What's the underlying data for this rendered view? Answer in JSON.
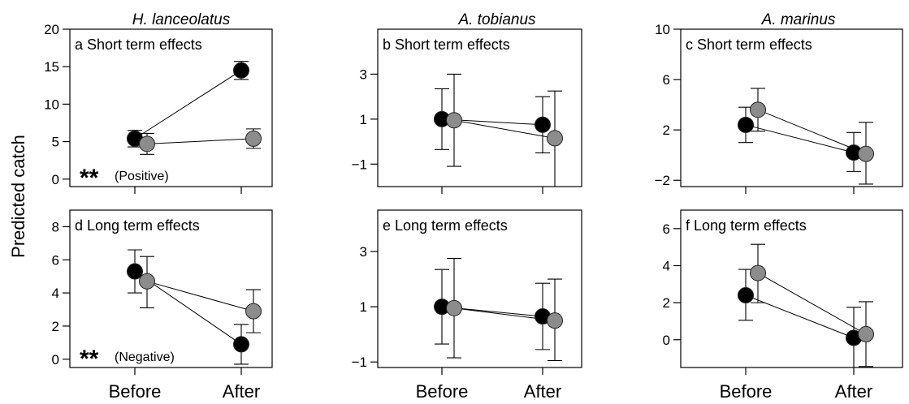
{
  "figure": {
    "ylabel": "Predicted catch",
    "species": [
      "H. lanceolatus",
      "A. tobianus",
      "A. marinus"
    ]
  },
  "colors": {
    "series_black": "#000000",
    "series_grey": "#8c8c8c"
  },
  "chart_data": [
    {
      "type": "line",
      "panel": "a",
      "title": "a Short term effects",
      "species": "H. lanceolatus",
      "categories": [
        "Before",
        "After"
      ],
      "ylim": [
        -1,
        20
      ],
      "yticks": [
        0,
        5,
        10,
        15,
        20
      ],
      "annotation": "(Positive)",
      "stars": "**",
      "series": [
        {
          "values": [
            5.4,
            14.5
          ],
          "err_low": [
            4.3,
            13.3
          ],
          "err_high": [
            6.5,
            15.7
          ]
        },
        {
          "values": [
            4.7,
            5.4
          ],
          "err_low": [
            3.3,
            4.1
          ],
          "err_high": [
            6.1,
            6.7
          ]
        }
      ]
    },
    {
      "type": "line",
      "panel": "b",
      "title": "b Short term effects",
      "species": "A. tobianus",
      "categories": [
        "Before",
        "After"
      ],
      "ylim": [
        -2.0,
        5.0
      ],
      "yticks": [
        -1,
        1,
        3
      ],
      "series": [
        {
          "values": [
            1.0,
            0.75
          ],
          "err_low": [
            -0.35,
            -0.5
          ],
          "err_high": [
            2.35,
            2.0
          ]
        },
        {
          "values": [
            0.95,
            0.15
          ],
          "err_low": [
            -1.1,
            -2.0
          ],
          "err_high": [
            3.0,
            2.25
          ]
        }
      ]
    },
    {
      "type": "line",
      "panel": "c",
      "title": "c Short term effects",
      "species": "A. marinus",
      "categories": [
        "Before",
        "After"
      ],
      "ylim": [
        -2.5,
        10.0
      ],
      "yticks": [
        -2,
        2,
        6,
        10
      ],
      "series": [
        {
          "values": [
            2.4,
            0.2
          ],
          "err_low": [
            1.0,
            -1.3
          ],
          "err_high": [
            3.8,
            1.8
          ]
        },
        {
          "values": [
            3.6,
            0.1
          ],
          "err_low": [
            1.9,
            -2.3
          ],
          "err_high": [
            5.3,
            2.6
          ]
        }
      ]
    },
    {
      "type": "line",
      "panel": "d",
      "title": "d Long term effects",
      "species": "H. lanceolatus",
      "categories": [
        "Before",
        "After"
      ],
      "ylim": [
        -0.5,
        9.0
      ],
      "yticks": [
        0,
        2,
        4,
        6,
        8
      ],
      "annotation": "(Negative)",
      "stars": "**",
      "series": [
        {
          "values": [
            5.3,
            0.9
          ],
          "err_low": [
            4.0,
            -0.3
          ],
          "err_high": [
            6.6,
            2.1
          ]
        },
        {
          "values": [
            4.7,
            2.9
          ],
          "err_low": [
            3.1,
            1.6
          ],
          "err_high": [
            6.2,
            4.2
          ]
        }
      ]
    },
    {
      "type": "line",
      "panel": "e",
      "title": "e Long term effects",
      "species": "A. tobianus",
      "categories": [
        "Before",
        "After"
      ],
      "ylim": [
        -1.2,
        4.5
      ],
      "yticks": [
        -1,
        1,
        3
      ],
      "series": [
        {
          "values": [
            1.0,
            0.65
          ],
          "err_low": [
            -0.35,
            -0.55
          ],
          "err_high": [
            2.35,
            1.85
          ]
        },
        {
          "values": [
            0.95,
            0.5
          ],
          "err_low": [
            -0.85,
            -0.95
          ],
          "err_high": [
            2.75,
            2.0
          ]
        }
      ]
    },
    {
      "type": "line",
      "panel": "f",
      "title": "f Long term effects",
      "species": "A. marinus",
      "categories": [
        "Before",
        "After"
      ],
      "ylim": [
        -1.5,
        7.0
      ],
      "yticks": [
        0,
        2,
        4,
        6
      ],
      "series": [
        {
          "values": [
            2.4,
            0.1
          ],
          "err_low": [
            1.05,
            -1.55
          ],
          "err_high": [
            3.8,
            1.75
          ]
        },
        {
          "values": [
            3.6,
            0.3
          ],
          "err_low": [
            2.0,
            -1.45
          ],
          "err_high": [
            5.15,
            2.05
          ]
        }
      ]
    }
  ]
}
